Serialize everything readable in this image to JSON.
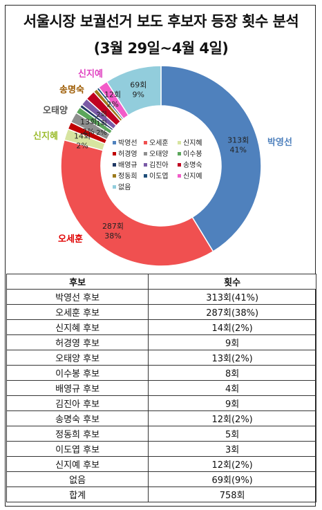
{
  "title": "서울시장 보궐선거 보도 후보자 등장 횟수 분석",
  "subtitle": "(3월 29일~4월 4일)",
  "chart_data": {
    "type": "pie",
    "total": 758,
    "slices": [
      {
        "name": "박영선",
        "value": 313,
        "label": "313회",
        "pct": "41%",
        "color": "#4F81BD"
      },
      {
        "name": "오세훈",
        "value": 287,
        "label": "287회",
        "pct": "38%",
        "color": "#F05050"
      },
      {
        "name": "신지혜",
        "value": 14,
        "label": "14회",
        "pct": "2%",
        "color": "#D7E4A0"
      },
      {
        "name": "허경영",
        "value": 9,
        "label": "",
        "pct": "",
        "color": "#C00000"
      },
      {
        "name": "오태양",
        "value": 13,
        "label": "13회",
        "pct": "2%",
        "color": "#8E8E8E"
      },
      {
        "name": "이수봉",
        "value": 8,
        "label": "",
        "pct": "",
        "color": "#5BA65B"
      },
      {
        "name": "배영규",
        "value": 4,
        "label": "",
        "pct": "",
        "color": "#1F3864"
      },
      {
        "name": "김진아",
        "value": 9,
        "label": "",
        "pct": "",
        "color": "#7A5AA6"
      },
      {
        "name": "송명숙",
        "value": 12,
        "label": "",
        "pct": "",
        "color": "#C00020"
      },
      {
        "name": "정동희",
        "value": 5,
        "label": "",
        "pct": "",
        "color": "#9C7A1C"
      },
      {
        "name": "이도엽",
        "value": 3,
        "label": "",
        "pct": "",
        "color": "#1F4E79"
      },
      {
        "name": "신지예",
        "value": 12,
        "label": "12회",
        "pct": "2%",
        "color": "#F25CC8"
      },
      {
        "name": "없음",
        "value": 69,
        "label": "69회",
        "pct": "9%",
        "color": "#92CDDC"
      }
    ],
    "small_value_labels": [
      "2회",
      "1회",
      "2%"
    ],
    "outer_labels": [
      {
        "text": "박영선",
        "color": "#4F81BD"
      },
      {
        "text": "오세훈",
        "color": "#E00000"
      },
      {
        "text": "신지혜",
        "color": "#9BBB2C"
      },
      {
        "text": "오태양",
        "color": "#555555"
      },
      {
        "text": "송명숙",
        "color": "#9C5A00"
      },
      {
        "text": "신지예",
        "color": "#E040C0"
      }
    ],
    "legend_placement": "center"
  },
  "table": {
    "headers": [
      "후보",
      "횟수"
    ],
    "rows": [
      [
        "박영선 후보",
        "313회(41%)"
      ],
      [
        "오세훈 후보",
        "287회(38%)"
      ],
      [
        "신지혜 후보",
        "14회(2%)"
      ],
      [
        "허경영 후보",
        "9회"
      ],
      [
        "오태양 후보",
        "13회(2%)"
      ],
      [
        "이수봉 후보",
        "8회"
      ],
      [
        "배영규 후보",
        "4회"
      ],
      [
        "김진아 후보",
        "9회"
      ],
      [
        "송명숙 후보",
        "12회(2%)"
      ],
      [
        "정동희 후보",
        "5회"
      ],
      [
        "이도엽 후보",
        "3회"
      ],
      [
        "신지예 후보",
        "12회(2%)"
      ],
      [
        "없음",
        "69회(9%)"
      ],
      [
        "합계",
        "758회"
      ]
    ]
  }
}
